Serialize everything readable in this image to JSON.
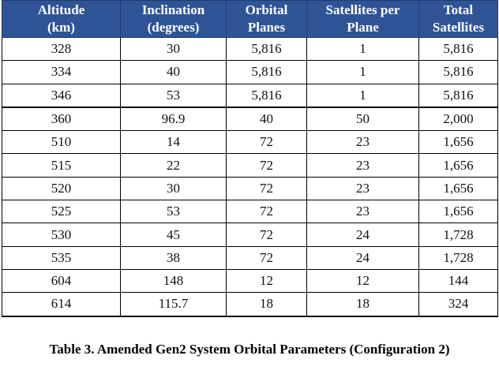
{
  "table": {
    "headers": [
      [
        "Altitude",
        "(km)"
      ],
      [
        "Inclination",
        "(degrees)"
      ],
      [
        "Orbital",
        "Planes"
      ],
      [
        "Satellites per",
        "Plane"
      ],
      [
        "Total",
        "Satellites"
      ]
    ],
    "rows": [
      [
        "328",
        "30",
        "5,816",
        "1",
        "5,816"
      ],
      [
        "334",
        "40",
        "5,816",
        "1",
        "5,816"
      ],
      [
        "346",
        "53",
        "5,816",
        "1",
        "5,816"
      ],
      [
        "360",
        "96.9",
        "40",
        "50",
        "2,000"
      ],
      [
        "510",
        "14",
        "72",
        "23",
        "1,656"
      ],
      [
        "515",
        "22",
        "72",
        "23",
        "1,656"
      ],
      [
        "520",
        "30",
        "72",
        "23",
        "1,656"
      ],
      [
        "525",
        "53",
        "72",
        "23",
        "1,656"
      ],
      [
        "530",
        "45",
        "72",
        "24",
        "1,728"
      ],
      [
        "535",
        "38",
        "72",
        "24",
        "1,728"
      ],
      [
        "604",
        "148",
        "12",
        "12",
        "144"
      ],
      [
        "614",
        "115.7",
        "18",
        "18",
        "324"
      ]
    ]
  },
  "caption": "Table 3.  Amended Gen2 System Orbital Parameters (Configuration 2)",
  "colors": {
    "header_bg": "#2f5496",
    "header_text": "#ffffff"
  }
}
